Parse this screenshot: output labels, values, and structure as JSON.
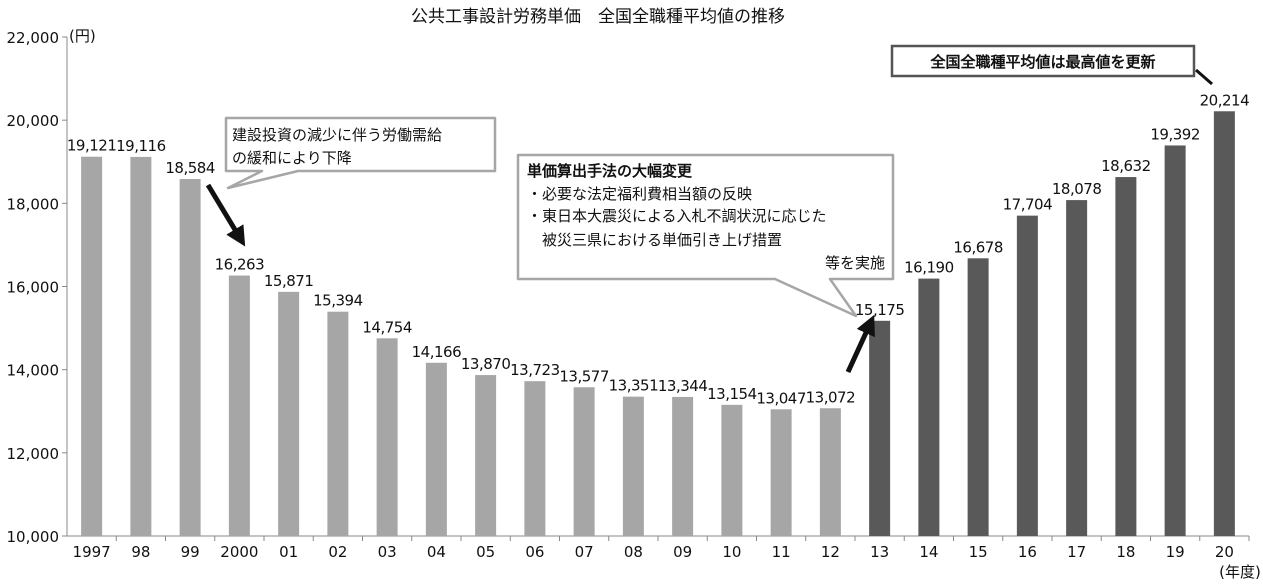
{
  "chart_data": {
    "type": "bar",
    "title": "公共工事設計労務単価　全国全職種平均値の推移",
    "y_unit": "(円)",
    "x_unit": "(年度)",
    "ylim": [
      10000,
      22000
    ],
    "yticks": [
      "10,000",
      "12,000",
      "14,000",
      "16,000",
      "18,000",
      "20,000",
      "22,000"
    ],
    "ytick_values": [
      10000,
      12000,
      14000,
      16000,
      18000,
      20000,
      22000
    ],
    "grid": false,
    "categories": [
      "1997",
      "98",
      "99",
      "2000",
      "01",
      "02",
      "03",
      "04",
      "05",
      "06",
      "07",
      "08",
      "09",
      "10",
      "11",
      "12",
      "13",
      "14",
      "15",
      "16",
      "17",
      "18",
      "19",
      "20"
    ],
    "values": [
      19121,
      19116,
      18584,
      16263,
      15871,
      15394,
      14754,
      14166,
      13870,
      13723,
      13577,
      13351,
      13344,
      13154,
      13047,
      13072,
      15175,
      16190,
      16678,
      17704,
      18078,
      18632,
      19392,
      20214
    ],
    "value_labels": [
      "19,121",
      "19,116",
      "18,584",
      "16,263",
      "15,871",
      "15,394",
      "14,754",
      "14,166",
      "13,870",
      "13,723",
      "13,577",
      "13,351",
      "13,344",
      "13,154",
      "13,047",
      "13,072",
      "15,175",
      "16,190",
      "16,678",
      "17,704",
      "18,078",
      "18,632",
      "19,392",
      "20,214"
    ],
    "colors": {
      "before_2013": "#a6a6a6",
      "from_2013": "#595959",
      "callout_border": "#a6a6a6"
    },
    "color_split_index": 16,
    "annotations": {
      "decline": {
        "lines": [
          "建設投資の減少に伴う労働需給",
          "の緩和により下降"
        ]
      },
      "method": {
        "title": "単価算出手法の大幅変更",
        "lines": [
          "・必要な法定福利費相当額の反映",
          "・東日本大震災による入札不調状況に応じた",
          "　被災三県における単価引き上げ措置",
          "等を実施"
        ]
      },
      "record": {
        "text": "全国全職種平均値は最高値を更新"
      }
    }
  }
}
